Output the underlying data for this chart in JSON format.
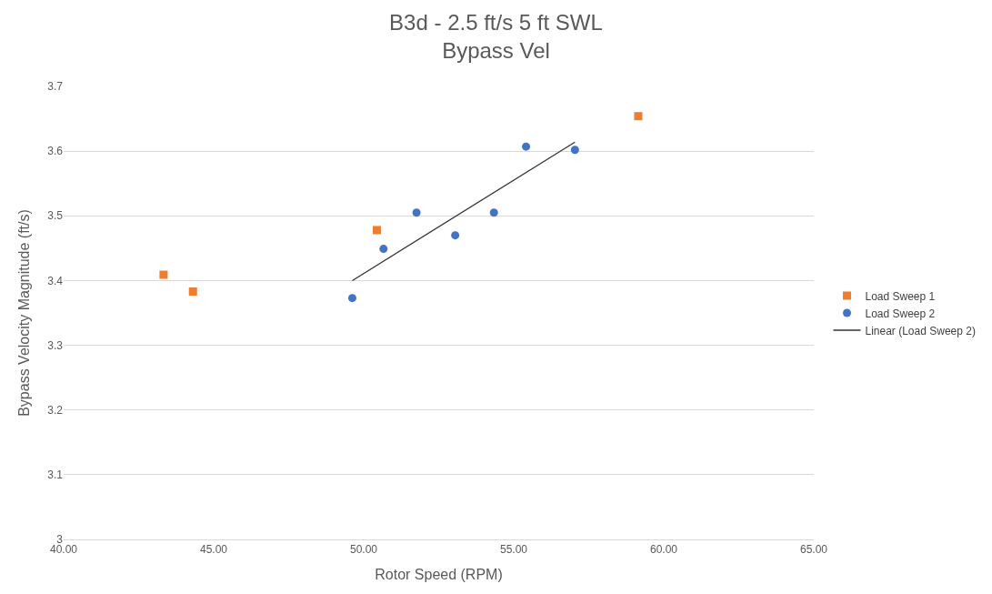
{
  "chart_data": {
    "type": "scatter",
    "title": "B3d - 2.5 ft/s 5 ft SWL\nBypass Vel",
    "xlabel": "Rotor Speed (RPM)",
    "ylabel": "Bypass Velocity Magnitude (ft/s)",
    "series": [
      {
        "name": "Load Sweep 1",
        "color": "#ed7d31",
        "marker": "square",
        "x": [
          43.33,
          44.31,
          50.44,
          59.15
        ],
        "values": [
          3.409,
          3.383,
          3.478,
          3.654
        ]
      },
      {
        "name": "Load Sweep 2",
        "color": "#4472c4",
        "marker": "circle",
        "x": [
          49.62,
          50.66,
          51.76,
          53.05,
          54.34,
          55.41,
          57.04
        ],
        "values": [
          3.373,
          3.449,
          3.505,
          3.47,
          3.505,
          3.607,
          3.602
        ]
      },
      {
        "name": "Linear (Load Sweep 2)",
        "type": "line",
        "color": "#333333",
        "marker": "none",
        "x": [
          49.62,
          57.04
        ],
        "values": [
          3.4,
          3.614
        ]
      }
    ],
    "xlim": [
      40,
      65
    ],
    "xticks": [
      {
        "value": 40,
        "label": "40.00"
      },
      {
        "value": 45,
        "label": "45.00"
      },
      {
        "value": 50,
        "label": "50.00"
      },
      {
        "value": 55,
        "label": "55.00"
      },
      {
        "value": 60,
        "label": "60.00"
      },
      {
        "value": 65,
        "label": "65.00"
      }
    ],
    "ylim": [
      3,
      3.7
    ],
    "yticks": [
      3,
      3.1,
      3.2,
      3.3,
      3.4,
      3.5,
      3.6,
      3.7
    ],
    "grid": "y",
    "legend": "right"
  }
}
